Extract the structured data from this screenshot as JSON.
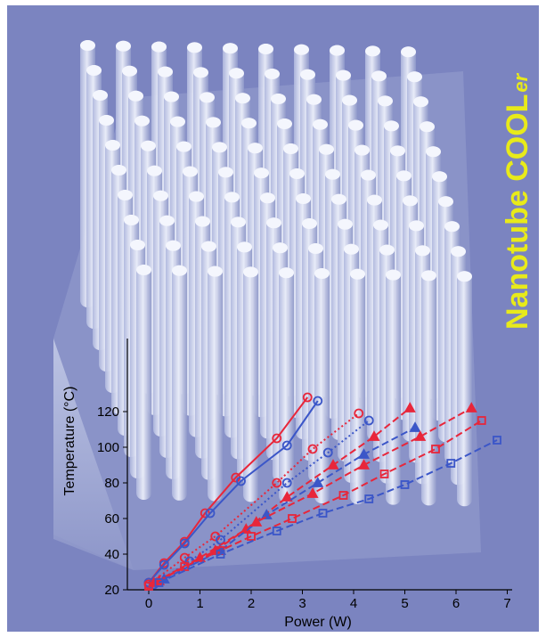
{
  "figure": {
    "brand_text": "Nanotube COOL",
    "brand_suffix": "er",
    "colors": {
      "background": "#7b84c0",
      "pillar": "#dfe5f5",
      "red": "#e8263a",
      "blue": "#3b56c8",
      "brand": "#e8ea1a"
    }
  },
  "chart_data": {
    "type": "line",
    "xlabel": "Power (W)",
    "ylabel": "Temperature (°C)",
    "xlim": [
      0,
      7
    ],
    "ylim": [
      20,
      125
    ],
    "xticks": [
      0,
      1,
      2,
      3,
      4,
      5,
      6,
      7
    ],
    "yticks": [
      20,
      40,
      60,
      80,
      100,
      120
    ],
    "grid": false,
    "legend": "none",
    "series": [
      {
        "color": "#e8263a",
        "line": "solid",
        "marker": "circle",
        "x": [
          0,
          0.3,
          0.7,
          1.1,
          1.7,
          2.5,
          3.1
        ],
        "y": [
          24,
          35,
          47,
          63,
          83,
          105,
          128
        ]
      },
      {
        "color": "#3b56c8",
        "line": "solid",
        "marker": "circle",
        "x": [
          0,
          0.3,
          0.7,
          1.2,
          1.8,
          2.7,
          3.3
        ],
        "y": [
          24,
          34,
          46,
          63,
          81,
          101,
          126
        ]
      },
      {
        "color": "#e8263a",
        "line": "dotted",
        "marker": "circle",
        "x": [
          0,
          0.7,
          1.3,
          2.5,
          3.2,
          4.1
        ],
        "y": [
          23,
          38,
          50,
          80,
          99,
          119
        ]
      },
      {
        "color": "#3b56c8",
        "line": "dotted",
        "marker": "circle",
        "x": [
          0.1,
          0.8,
          1.4,
          2.7,
          3.5,
          4.3
        ],
        "y": [
          23,
          36,
          48,
          80,
          97,
          115
        ]
      },
      {
        "color": "#e8263a",
        "line": "dashed",
        "marker": "triangle",
        "x": [
          0.1,
          1.0,
          1.9,
          2.7,
          3.6,
          4.4,
          5.1
        ],
        "y": [
          24,
          38,
          54,
          72,
          90,
          106,
          122
        ]
      },
      {
        "color": "#3b56c8",
        "line": "dashed",
        "marker": "triangle",
        "x": [
          0.3,
          1.4,
          2.3,
          3.3,
          4.2,
          5.2
        ],
        "y": [
          26,
          42,
          62,
          80,
          96,
          111
        ]
      },
      {
        "color": "#e8263a",
        "line": "dashed",
        "marker": "triangle",
        "x": [
          0.2,
          1.3,
          2.1,
          3.2,
          4.2,
          5.3,
          6.3
        ],
        "y": [
          25,
          42,
          58,
          74,
          90,
          106,
          122
        ]
      },
      {
        "color": "#e8263a",
        "line": "dashed",
        "marker": "square",
        "x": [
          0,
          0.7,
          1.4,
          2.0,
          2.8,
          3.8,
          4.6,
          5.6,
          6.5
        ],
        "y": [
          22,
          33,
          42,
          50,
          60,
          73,
          85,
          99,
          115
        ]
      },
      {
        "color": "#3b56c8",
        "line": "dashed",
        "marker": "square",
        "x": [
          0.2,
          1.4,
          2.5,
          3.4,
          4.3,
          5.0,
          5.9,
          6.8
        ],
        "y": [
          24,
          40,
          53,
          63,
          71,
          79,
          91,
          104
        ]
      }
    ]
  }
}
